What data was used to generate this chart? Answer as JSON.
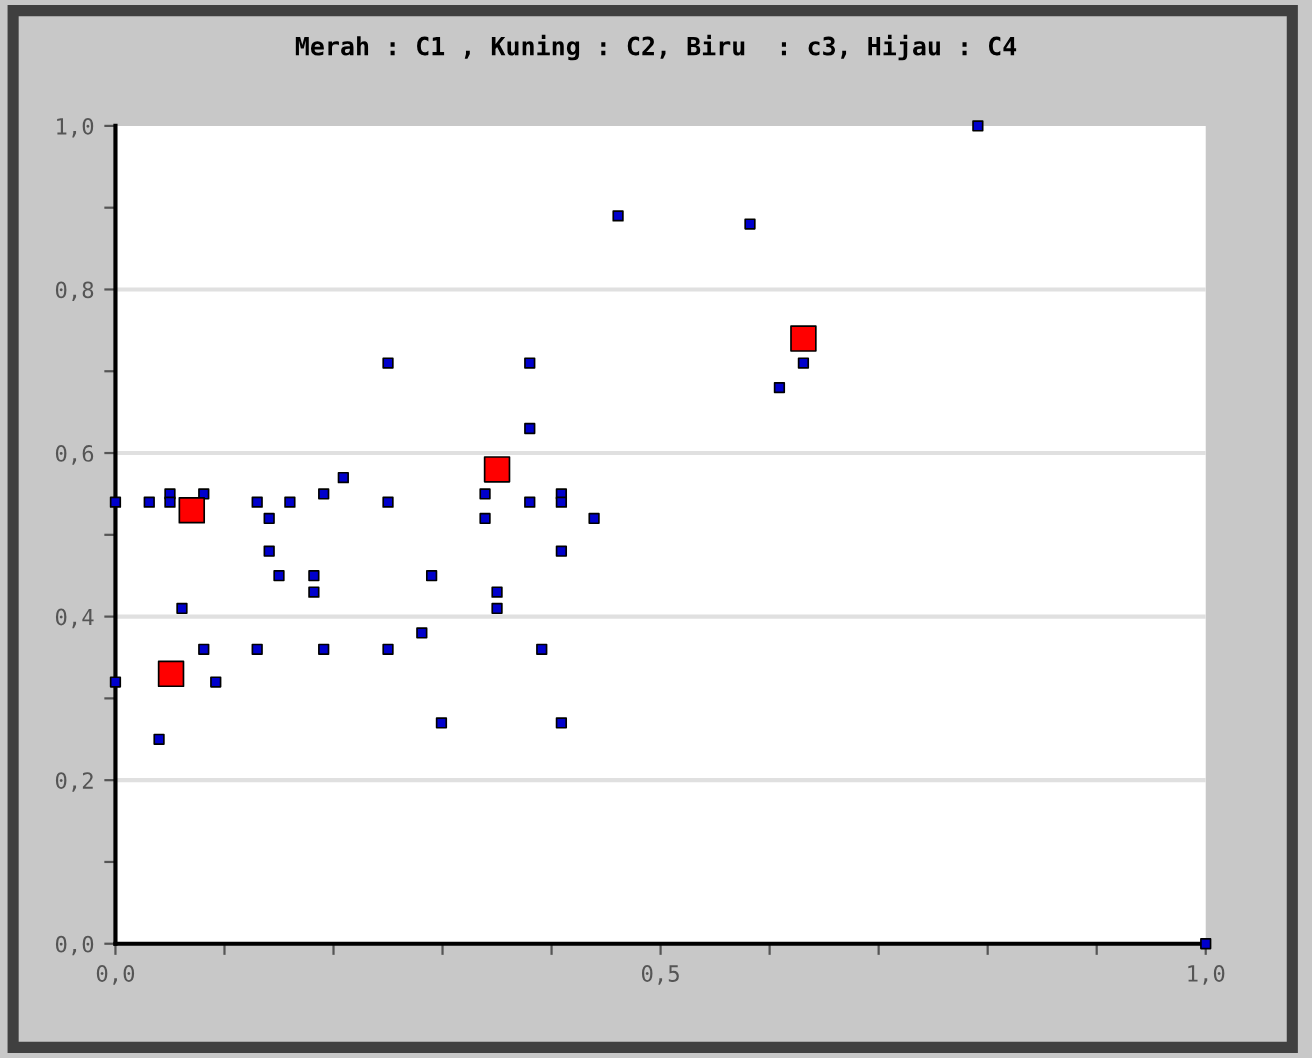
{
  "chart_data": {
    "type": "scatter",
    "title": "Merah : C1 , Kuning : C2, Biru  : c3, Hijau : C4",
    "series": [
      {
        "color": "#0000cc",
        "marker": "square",
        "x": [
          0,
          0,
          0.031,
          0.04,
          0.05,
          0.05,
          0.061,
          0.081,
          0.081,
          0.092,
          0.13,
          0.13,
          0.141,
          0.141,
          0.15,
          0.16,
          0.182,
          0.182,
          0.191,
          0.191,
          0.209,
          0.25,
          0.25,
          0.25,
          0.281,
          0.29,
          0.299,
          0.339,
          0.339,
          0.35,
          0.35,
          0.38,
          0.38,
          0.38,
          0.391,
          0.409,
          0.409,
          0.409,
          0.409,
          0.439,
          0.461,
          0.582,
          0.609,
          0.631,
          0.791,
          1.0
        ],
        "values": [
          0.54,
          0.32,
          0.54,
          0.25,
          0.55,
          0.54,
          0.41,
          0.55,
          0.36,
          0.32,
          0.54,
          0.36,
          0.52,
          0.48,
          0.45,
          0.54,
          0.45,
          0.43,
          0.55,
          0.36,
          0.57,
          0.71,
          0.54,
          0.36,
          0.38,
          0.45,
          0.27,
          0.55,
          0.52,
          0.43,
          0.41,
          0.71,
          0.63,
          0.54,
          0.36,
          0.55,
          0.54,
          0.48,
          0.27,
          0.52,
          0.89,
          0.88,
          0.68,
          0.71,
          1.0,
          0.0
        ]
      },
      {
        "color": "#ff0000",
        "marker": "square",
        "x": [
          0.051,
          0.07,
          0.35,
          0.631
        ],
        "values": [
          0.33,
          0.53,
          0.58,
          0.74
        ]
      }
    ],
    "xlim": [
      0,
      1
    ],
    "ylim": [
      0,
      1
    ],
    "xticks": [
      {
        "value": 0,
        "label": "0,0"
      },
      {
        "value": 0.1,
        "label": null
      },
      {
        "value": 0.2,
        "label": null
      },
      {
        "value": 0.3,
        "label": null
      },
      {
        "value": 0.4,
        "label": null
      },
      {
        "value": 0.5,
        "label": "0,5"
      },
      {
        "value": 0.6,
        "label": null
      },
      {
        "value": 0.7,
        "label": null
      },
      {
        "value": 0.8,
        "label": null
      },
      {
        "value": 0.9,
        "label": null
      },
      {
        "value": 1.0,
        "label": "1,0"
      }
    ],
    "yticks": [
      {
        "value": 0,
        "label": "0,0"
      },
      {
        "value": 0.1,
        "label": null
      },
      {
        "value": 0.2,
        "label": "0,2"
      },
      {
        "value": 0.3,
        "label": null
      },
      {
        "value": 0.4,
        "label": "0,4"
      },
      {
        "value": 0.5,
        "label": null
      },
      {
        "value": 0.6,
        "label": "0,6"
      },
      {
        "value": 0.7,
        "label": null
      },
      {
        "value": 0.8,
        "label": "0,8"
      },
      {
        "value": 0.9,
        "label": null
      },
      {
        "value": 1.0,
        "label": "1,0"
      }
    ],
    "grid": "y",
    "legend": false
  }
}
